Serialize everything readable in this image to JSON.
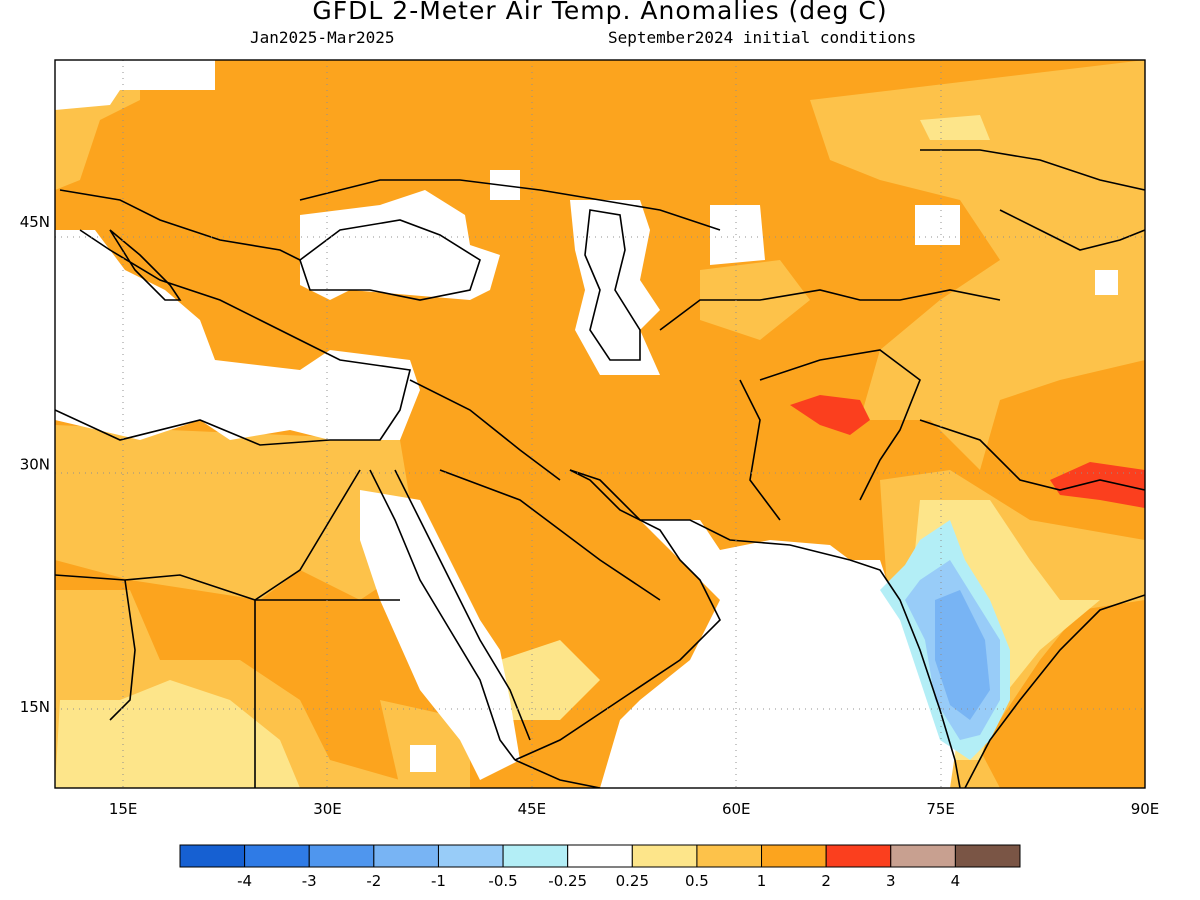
{
  "header": {
    "title": "GFDL 2-Meter Air Temp. Anomalies (deg C)",
    "period": "Jan2025-Mar2025",
    "initial_conditions": "September2024 initial conditions"
  },
  "map": {
    "projection": "lat-lon",
    "extent": {
      "lon": [
        10,
        90
      ],
      "lat": [
        10,
        55
      ]
    },
    "lat_ticks": [
      {
        "value": 15,
        "label": "15N"
      },
      {
        "value": 30,
        "label": "30N"
      },
      {
        "value": 45,
        "label": "45N"
      }
    ],
    "lon_ticks": [
      {
        "value": 15,
        "label": "15E"
      },
      {
        "value": 30,
        "label": "30E"
      },
      {
        "value": 45,
        "label": "45E"
      },
      {
        "value": 60,
        "label": "60E"
      },
      {
        "value": 75,
        "label": "75E"
      },
      {
        "value": 90,
        "label": "90E"
      }
    ]
  },
  "colorbar": {
    "colors": [
      "#1660d2",
      "#2f7be6",
      "#4f96ee",
      "#78b4f4",
      "#98ccf8",
      "#b3eef6",
      "#ffffff",
      "#fde58a",
      "#fdc24a",
      "#fca41e",
      "#fb3f1e",
      "#c8a090",
      "#7a5545"
    ],
    "labels": [
      "-4",
      "-3",
      "-2",
      "-1",
      "-0.5",
      "-0.25",
      "0.25",
      "0.5",
      "1",
      "2",
      "3",
      "4"
    ]
  }
}
